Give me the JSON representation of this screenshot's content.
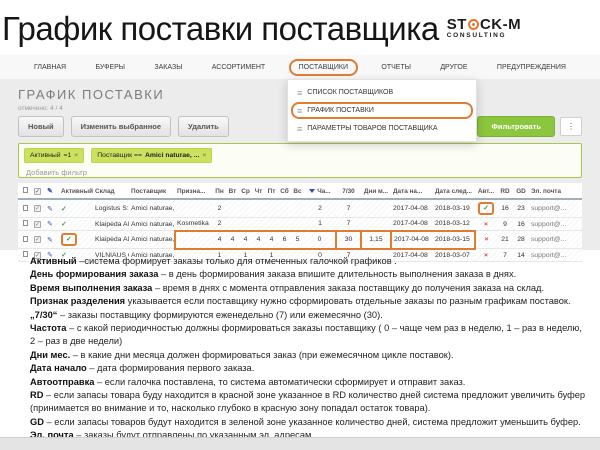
{
  "page": {
    "title": "График поставки поставщика"
  },
  "logo": {
    "pre": "ST",
    "post": "CK-M",
    "sub": "CONSULTING"
  },
  "nav": {
    "items": [
      {
        "label": "ГЛАВНАЯ"
      },
      {
        "label": "БУФЕРЫ"
      },
      {
        "label": "ЗАКАЗЫ"
      },
      {
        "label": "АССОРТИМЕНТ"
      },
      {
        "label": "ПОСТАВЩИКИ",
        "highlighted": true
      },
      {
        "label": "ОТЧЕТЫ"
      },
      {
        "label": "ДРУГОЕ"
      },
      {
        "label": "ПРЕДУПРЕЖДЕНИЯ"
      }
    ]
  },
  "dropdown": {
    "items": [
      {
        "label": "СПИСОК ПОСТАВЩИКОВ"
      },
      {
        "label": "ГРАФИК ПОСТАВКИ",
        "highlighted": true
      },
      {
        "label": "ПАРАМЕТРЫ ТОВАРОВ ПОСТАВЩИКА"
      }
    ]
  },
  "content": {
    "heading": "ГРАФИК ПОСТАВКИ",
    "selected_info": "отмечено: 4 / 4",
    "buttons": {
      "new": "Новый",
      "edit": "Изменить выбранное",
      "delete": "Удалить",
      "filter_apply": "Фильтровать",
      "filter_count": "2"
    },
    "filters": {
      "chips": [
        {
          "label": "Активный",
          "value": "=1"
        },
        {
          "label": "Поставщик ==",
          "value": "Amici naturae, ..."
        }
      ],
      "placeholder": "Добавить фильтр"
    }
  },
  "table": {
    "headers": [
      {
        "label": "Активный"
      },
      {
        "label": "Склад"
      },
      {
        "label": "Поставщик"
      },
      {
        "label": "Призна..."
      },
      {
        "label": "Пн"
      },
      {
        "label": "Вт"
      },
      {
        "label": "Ср"
      },
      {
        "label": "Чт"
      },
      {
        "label": "Пт"
      },
      {
        "label": "Сб"
      },
      {
        "label": "Вс"
      },
      {
        "label": "Ча...",
        "filter_icon": true
      },
      {
        "label": "7/30"
      },
      {
        "label": "Дни м..."
      },
      {
        "label": "Дата на..."
      },
      {
        "label": "Дата след..."
      },
      {
        "label": "Авт..."
      },
      {
        "label": "RD"
      },
      {
        "label": "GD"
      },
      {
        "label": "Эл. почта"
      }
    ],
    "rows": [
      {
        "checked": true,
        "active": true,
        "sklad": "Logistus S:",
        "supplier": "Amici naturae, I",
        "priznak": "",
        "days": [
          "2",
          "",
          "",
          "",
          "",
          "",
          ""
        ],
        "cha": "2",
        "cycle": "7",
        "month_days": "",
        "date_start": "2017-04-08",
        "date_next": "2018-03-19",
        "auto": "yes",
        "rd": "16",
        "gd": "23",
        "email": "support@...",
        "highlights": [
          "auto"
        ]
      },
      {
        "checked": true,
        "active": true,
        "sklad": "Klaipėda Al",
        "supplier": "Amici naturae, I,",
        "priznak": "Kosmetika",
        "days": [
          "2",
          "",
          "",
          "",
          "",
          "",
          ""
        ],
        "cha": "1",
        "cycle": "7",
        "month_days": "",
        "date_start": "2017-04-08",
        "date_next": "2018-03-12",
        "auto": "no",
        "rd": "9",
        "gd": "16",
        "email": "support@...",
        "highlights": []
      },
      {
        "checked": true,
        "active": true,
        "sklad": "Klaipėda Al",
        "supplier": "Amici naturae, I",
        "priznak": "",
        "days": [
          "4",
          "4",
          "4",
          "4",
          "4",
          "6",
          "5"
        ],
        "cha": "0",
        "cycle": "30",
        "month_days": "1,15",
        "date_start": "2017-04-08",
        "date_next": "2018-03-15",
        "auto": "no",
        "rd": "21",
        "gd": "28",
        "email": "support@...",
        "highlights": [
          "active",
          "days_block",
          "cycle",
          "month_days",
          "dates"
        ]
      },
      {
        "checked": true,
        "active": true,
        "sklad": "VILNIAUS C",
        "supplier": "Amici naturae, I",
        "priznak": "",
        "days": [
          "1",
          "",
          "1",
          "",
          "1",
          "",
          ""
        ],
        "cha": "0",
        "cycle": "7",
        "month_days": "",
        "date_start": "2017-04-08",
        "date_next": "2018-03-07",
        "auto": "no",
        "rd": "7",
        "gd": "14",
        "email": "support@...",
        "highlights": []
      }
    ]
  },
  "legend": {
    "items": [
      {
        "term": "Активный",
        "text": " –система формирует заказы только для отмеченных галочкой графиков ."
      },
      {
        "term": "День формирования заказа",
        "text": " – в день формирования заказа впишите длительность выполнения заказа в днях."
      },
      {
        "term": "Время выполнения заказа",
        "text": " – время в днях с момента отправления заказа поставщику до получения заказа на склад."
      },
      {
        "term": "Признак разделения",
        "text": " указывается если поставщику нужно сформировать отдельные заказы по разным графикам поставок."
      },
      {
        "term": "„7/30“",
        "text": " – заказы поставщику формируются еженедельно (7) или ежемесячно (30)."
      },
      {
        "term": "Частота",
        "text": " – с какой периодичностью должны формироваться заказы поставщику ( 0 – чаще чем раз в неделю, 1 – раз в неделю, 2 – раз в две недели)"
      },
      {
        "term": "Дни мес.",
        "text": " – в какие дни месяца должен формироваться заказ (при ежемесячном цикле поставок)."
      },
      {
        "term": "Дата начало",
        "text": " – дата формирования первого заказа."
      },
      {
        "term": "Автоотправка",
        "text": " – если галочка поставлена, то система автоматически сформирует и отправит заказ."
      },
      {
        "term": "RD",
        "text": " – если запасы товара буду находится в красной зоне указанное в RD количество дней система предложит увеличить буфер (принимается во внимание и то, насколько глубоко в красную зону попадал остаток товара)."
      },
      {
        "term": "GD",
        "text": " – если запасы товаров будут находится в зеленой зоне указанное количество дней, система предложит уменьшить буфер."
      },
      {
        "term": "Эл. почта",
        "text": " – заказы будут отправлены по указанным эл. адресам"
      }
    ]
  },
  "colors": {
    "accent_orange": "#e07c32",
    "button_green": "#8cc63e",
    "chip_green": "#cbe15f",
    "panel_border_green": "#a6c84c",
    "check_green": "#43a047",
    "cross_red": "#e0403a",
    "filter_blue": "#3949ab"
  }
}
